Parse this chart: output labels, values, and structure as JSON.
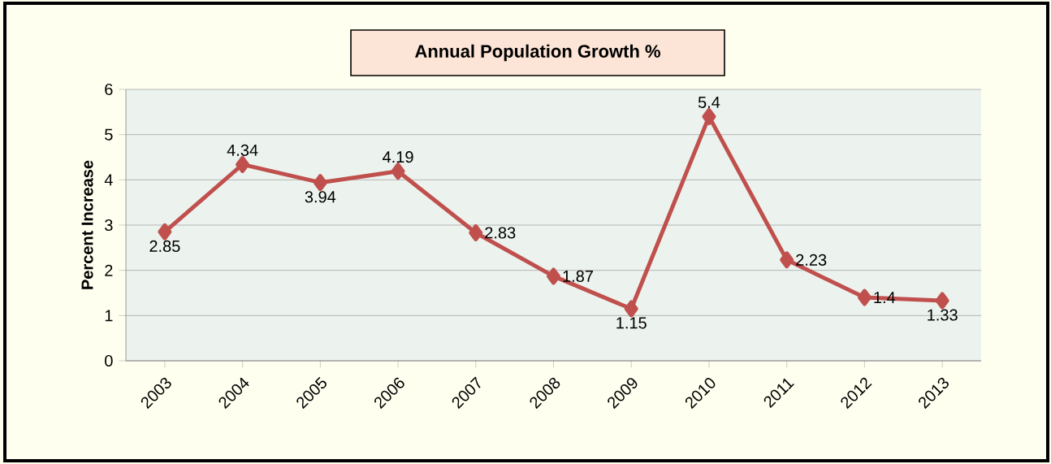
{
  "chart_data": {
    "type": "line",
    "title": "Annual Population Growth %",
    "ylabel": "Percent Increase",
    "categories": [
      "2003",
      "2004",
      "2005",
      "2006",
      "2007",
      "2008",
      "2009",
      "2010",
      "2011",
      "2012",
      "2013"
    ],
    "values": [
      2.85,
      4.34,
      3.94,
      4.19,
      2.83,
      1.87,
      1.15,
      5.4,
      2.23,
      1.4,
      1.33
    ],
    "color": "#c0504d",
    "ylim": [
      0,
      6
    ],
    "yticks": [
      0,
      1,
      2,
      3,
      4,
      5,
      6
    ],
    "grid": "y",
    "marker": "diamond",
    "line_style": "solid",
    "data_labels": true
  }
}
